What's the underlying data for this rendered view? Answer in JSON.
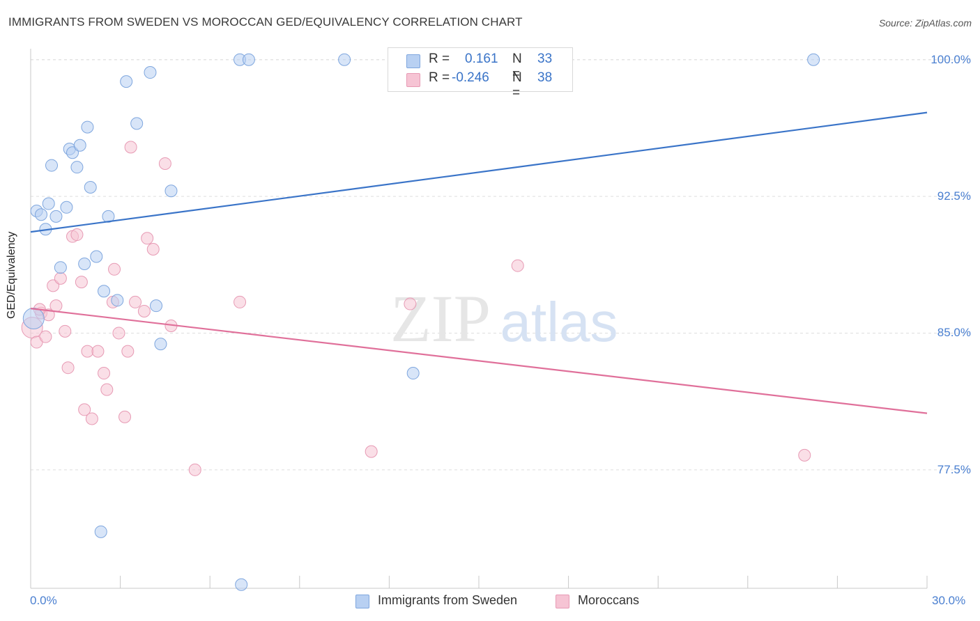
{
  "title": "IMMIGRANTS FROM SWEDEN VS MOROCCAN GED/EQUIVALENCY CORRELATION CHART",
  "source": "Source: ZipAtlas.com",
  "watermark": {
    "zip": "ZIP",
    "atlas": "atlas"
  },
  "colors": {
    "blue": "#3a74c8",
    "blue_fill": "#b8d0f2",
    "pink": "#e0709a",
    "pink_fill": "#f6c4d4",
    "grid": "#dddddd",
    "tick_text": "#4a7fd0"
  },
  "legend": {
    "rows": [
      {
        "r_label": "R =",
        "r_value": "0.161",
        "n_label": "N =",
        "n_value": "33"
      },
      {
        "r_label": "R =",
        "r_value": "-0.246",
        "n_label": "N =",
        "n_value": "38"
      }
    ],
    "bottom": [
      "Immigrants from Sweden",
      "Moroccans"
    ]
  },
  "chart_data": {
    "type": "scatter",
    "xlabel": "",
    "ylabel": "GED/Equivalency",
    "xlim": [
      0,
      30
    ],
    "ylim": [
      71.0,
      100.6
    ],
    "x_tick_labels": [
      "0.0%",
      "30.0%"
    ],
    "y_ticks": [
      77.5,
      85.0,
      92.5,
      100.0
    ],
    "y_tick_labels": [
      "77.5%",
      "85.0%",
      "92.5%",
      "100.0%"
    ],
    "grid": "horizontal dashed",
    "legend_position": "top-center",
    "series": [
      {
        "name": "Immigrants from Sweden",
        "color": "#3a74c8",
        "trend": {
          "x": [
            0,
            30
          ],
          "y": [
            90.55,
            97.1
          ]
        },
        "points": [
          [
            0.2,
            91.7
          ],
          [
            0.35,
            91.5
          ],
          [
            0.5,
            90.7
          ],
          [
            0.6,
            92.1
          ],
          [
            0.7,
            94.2
          ],
          [
            0.85,
            91.4
          ],
          [
            1.0,
            88.6
          ],
          [
            1.2,
            91.9
          ],
          [
            1.3,
            95.1
          ],
          [
            1.4,
            94.9
          ],
          [
            1.55,
            94.1
          ],
          [
            1.65,
            95.3
          ],
          [
            1.8,
            88.8
          ],
          [
            1.9,
            96.3
          ],
          [
            2.0,
            93.0
          ],
          [
            2.2,
            89.2
          ],
          [
            2.35,
            74.1
          ],
          [
            2.45,
            87.3
          ],
          [
            2.6,
            91.4
          ],
          [
            2.9,
            86.8
          ],
          [
            3.2,
            98.8
          ],
          [
            3.55,
            96.5
          ],
          [
            4.0,
            99.3
          ],
          [
            4.2,
            86.5
          ],
          [
            4.35,
            84.4
          ],
          [
            4.7,
            92.8
          ],
          [
            7.0,
            100.0
          ],
          [
            7.3,
            100.0
          ],
          [
            7.05,
            71.2
          ],
          [
            10.5,
            100.0
          ],
          [
            12.8,
            82.8
          ],
          [
            26.2,
            100.0
          ],
          [
            0.1,
            85.8
          ]
        ]
      },
      {
        "name": "Moroccans",
        "color": "#e0709a",
        "trend": {
          "x": [
            0,
            30
          ],
          "y": [
            86.35,
            80.6
          ]
        },
        "points": [
          [
            0.05,
            85.3
          ],
          [
            0.2,
            84.5
          ],
          [
            0.35,
            86.1
          ],
          [
            0.5,
            84.8
          ],
          [
            0.6,
            86.0
          ],
          [
            0.75,
            87.6
          ],
          [
            0.85,
            86.5
          ],
          [
            1.0,
            88.0
          ],
          [
            1.15,
            85.1
          ],
          [
            1.25,
            83.1
          ],
          [
            1.4,
            90.3
          ],
          [
            1.55,
            90.4
          ],
          [
            1.7,
            87.8
          ],
          [
            1.8,
            80.8
          ],
          [
            1.9,
            84.0
          ],
          [
            2.05,
            80.3
          ],
          [
            2.25,
            84.0
          ],
          [
            2.45,
            82.8
          ],
          [
            2.55,
            81.9
          ],
          [
            2.75,
            86.7
          ],
          [
            2.8,
            88.5
          ],
          [
            2.95,
            85.0
          ],
          [
            3.15,
            80.4
          ],
          [
            3.25,
            84.0
          ],
          [
            3.35,
            95.2
          ],
          [
            3.5,
            86.7
          ],
          [
            3.8,
            86.2
          ],
          [
            3.9,
            90.2
          ],
          [
            4.1,
            89.6
          ],
          [
            4.5,
            94.3
          ],
          [
            4.7,
            85.4
          ],
          [
            5.5,
            77.5
          ],
          [
            7.0,
            86.7
          ],
          [
            11.4,
            78.5
          ],
          [
            12.7,
            86.6
          ],
          [
            16.3,
            88.7
          ],
          [
            25.9,
            78.3
          ],
          [
            0.3,
            86.3
          ]
        ]
      }
    ]
  }
}
